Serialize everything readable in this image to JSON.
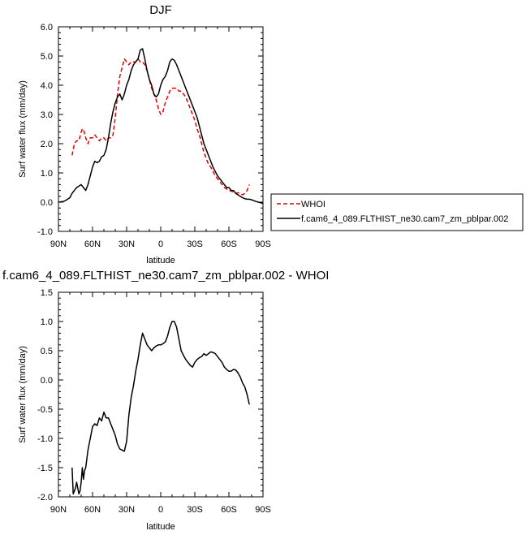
{
  "chart_data": [
    {
      "type": "line",
      "title": "DJF",
      "xlabel": "latitude",
      "ylabel": "Surf water flux (mm/day)",
      "xlim": [
        90,
        -90
      ],
      "ylim": [
        -1.0,
        6.0
      ],
      "x_ticks": [
        90,
        60,
        30,
        0,
        -30,
        -60,
        -90
      ],
      "x_tick_labels": [
        "90N",
        "60N",
        "30N",
        "0",
        "30S",
        "60S",
        "90S"
      ],
      "y_ticks": [
        -1,
        0,
        1,
        2,
        3,
        4,
        5,
        6
      ],
      "y_tick_labels": [
        "-1.0",
        "0.0",
        "1.0",
        "2.0",
        "3.0",
        "4.0",
        "5.0",
        "6.0"
      ],
      "grid": false,
      "legend": {
        "placement": "right",
        "entries": [
          "WHOI",
          "f.cam6_4_089.FLTHIST_ne30.cam7_zm_pblpar.002"
        ]
      },
      "series": [
        {
          "name": "WHOI",
          "color": "#e00000",
          "dash": true,
          "x": [
            78,
            76,
            74,
            72,
            70,
            69,
            68,
            66,
            64,
            62,
            60,
            58,
            56,
            54,
            52,
            50,
            48,
            46,
            44,
            42,
            40,
            38,
            36,
            34,
            32,
            30,
            28,
            26,
            24,
            22,
            20,
            18,
            16,
            14,
            12,
            10,
            8,
            6,
            4,
            2,
            0,
            -2,
            -4,
            -6,
            -8,
            -10,
            -12,
            -14,
            -16,
            -18,
            -20,
            -22,
            -24,
            -26,
            -28,
            -30,
            -32,
            -34,
            -36,
            -38,
            -40,
            -42,
            -44,
            -46,
            -48,
            -50,
            -52,
            -54,
            -56,
            -58,
            -60,
            -62,
            -64,
            -66,
            -68,
            -70,
            -72,
            -74,
            -76,
            -78
          ],
          "y": [
            1.6,
            2.0,
            2.1,
            2.1,
            2.4,
            2.5,
            2.5,
            2.2,
            2.0,
            2.2,
            2.2,
            2.3,
            2.2,
            2.1,
            2.2,
            2.2,
            2.1,
            2.2,
            2.2,
            2.3,
            2.9,
            3.7,
            4.3,
            4.6,
            4.9,
            4.8,
            4.7,
            4.8,
            4.8,
            4.8,
            4.9,
            4.8,
            4.8,
            4.7,
            4.5,
            4.2,
            3.9,
            3.7,
            3.5,
            3.2,
            3.0,
            3.1,
            3.4,
            3.6,
            3.8,
            3.9,
            3.9,
            3.9,
            3.8,
            3.8,
            3.7,
            3.6,
            3.4,
            3.2,
            3.0,
            2.8,
            2.5,
            2.3,
            2.0,
            1.7,
            1.5,
            1.3,
            1.2,
            1.05,
            0.9,
            0.8,
            0.7,
            0.6,
            0.5,
            0.45,
            0.4,
            0.38,
            0.35,
            0.3,
            0.32,
            0.3,
            0.25,
            0.3,
            0.4,
            0.6
          ]
        },
        {
          "name": "f.cam6_4_089.FLTHIST_ne30.cam7_zm_pblpar.002",
          "color": "#000000",
          "dash": false,
          "x": [
            90,
            86,
            84,
            82,
            80,
            78,
            76,
            74,
            72,
            70,
            68,
            66,
            64,
            62,
            60,
            58,
            56,
            54,
            52,
            50,
            48,
            46,
            44,
            42,
            40,
            38,
            36,
            34,
            32,
            30,
            28,
            26,
            24,
            22,
            20,
            18,
            16,
            14,
            12,
            10,
            8,
            6,
            4,
            2,
            0,
            -2,
            -4,
            -6,
            -8,
            -10,
            -12,
            -14,
            -16,
            -18,
            -20,
            -22,
            -24,
            -26,
            -28,
            -30,
            -32,
            -34,
            -36,
            -38,
            -40,
            -42,
            -44,
            -46,
            -48,
            -50,
            -52,
            -54,
            -56,
            -58,
            -60,
            -62,
            -64,
            -66,
            -68,
            -70,
            -72,
            -74,
            -76,
            -78,
            -80,
            -82,
            -84,
            -86,
            -88,
            -90
          ],
          "y": [
            0.0,
            0.02,
            0.05,
            0.1,
            0.15,
            0.3,
            0.4,
            0.5,
            0.55,
            0.6,
            0.5,
            0.4,
            0.6,
            0.9,
            1.2,
            1.4,
            1.35,
            1.4,
            1.55,
            1.6,
            1.8,
            2.2,
            2.7,
            3.1,
            3.4,
            3.6,
            3.7,
            3.5,
            3.7,
            4.0,
            4.2,
            4.5,
            4.7,
            4.8,
            4.9,
            5.2,
            5.25,
            4.9,
            4.5,
            4.2,
            4.0,
            3.7,
            3.6,
            3.7,
            4.0,
            4.2,
            4.3,
            4.5,
            4.8,
            4.9,
            4.85,
            4.7,
            4.5,
            4.3,
            4.1,
            3.9,
            3.7,
            3.5,
            3.3,
            3.1,
            2.9,
            2.6,
            2.3,
            2.0,
            1.8,
            1.6,
            1.4,
            1.2,
            1.05,
            0.9,
            0.8,
            0.7,
            0.6,
            0.5,
            0.5,
            0.4,
            0.4,
            0.3,
            0.25,
            0.2,
            0.15,
            0.12,
            0.1,
            0.1,
            0.08,
            0.05,
            0.02,
            0.0,
            -0.02,
            -0.05
          ]
        }
      ]
    },
    {
      "type": "line",
      "title": "f.cam6_4_089.FLTHIST_ne30.cam7_zm_pblpar.002 - WHOI",
      "xlabel": "latitude",
      "ylabel": "Surf water flux (mm/day)",
      "xlim": [
        90,
        -90
      ],
      "ylim": [
        -2.0,
        1.5
      ],
      "x_ticks": [
        90,
        60,
        30,
        0,
        -30,
        -60,
        -90
      ],
      "x_tick_labels": [
        "90N",
        "60N",
        "30N",
        "0",
        "30S",
        "60S",
        "90S"
      ],
      "y_ticks": [
        -2.0,
        -1.5,
        -1.0,
        -0.5,
        0.0,
        0.5,
        1.0,
        1.5
      ],
      "y_tick_labels": [
        "-2.0",
        "-1.5",
        "-1.0",
        "-0.5",
        "0.0",
        "0.5",
        "1.0",
        "1.5"
      ],
      "grid": false,
      "series": [
        {
          "color": "#000000",
          "dash": false,
          "x": [
            78,
            77,
            76,
            75,
            74,
            73,
            72,
            71,
            70,
            69,
            68,
            67,
            66,
            65,
            64,
            62,
            60,
            58,
            56,
            54,
            52,
            50,
            49,
            48,
            46,
            44,
            42,
            40,
            38,
            36,
            34,
            32,
            30,
            28,
            26,
            24,
            22,
            20,
            18,
            16,
            14,
            12,
            10,
            8,
            6,
            4,
            2,
            0,
            -2,
            -4,
            -6,
            -8,
            -10,
            -12,
            -14,
            -16,
            -18,
            -20,
            -22,
            -24,
            -26,
            -28,
            -30,
            -32,
            -34,
            -36,
            -38,
            -40,
            -42,
            -44,
            -46,
            -48,
            -50,
            -52,
            -54,
            -56,
            -58,
            -60,
            -62,
            -64,
            -66,
            -68,
            -70,
            -72,
            -74,
            -76,
            -78
          ],
          "y": [
            -1.5,
            -1.95,
            -1.9,
            -1.85,
            -1.75,
            -1.85,
            -1.95,
            -1.9,
            -1.75,
            -1.5,
            -1.7,
            -1.55,
            -1.5,
            -1.35,
            -1.2,
            -1.0,
            -0.8,
            -0.75,
            -0.78,
            -0.65,
            -0.7,
            -0.55,
            -0.6,
            -0.65,
            -0.65,
            -0.75,
            -0.85,
            -0.95,
            -1.1,
            -1.18,
            -1.2,
            -1.22,
            -1.05,
            -0.6,
            -0.3,
            -0.1,
            0.15,
            0.35,
            0.6,
            0.8,
            0.7,
            0.6,
            0.55,
            0.5,
            0.55,
            0.58,
            0.6,
            0.6,
            0.62,
            0.65,
            0.75,
            0.9,
            1.0,
            1.0,
            0.9,
            0.7,
            0.5,
            0.42,
            0.35,
            0.3,
            0.25,
            0.22,
            0.3,
            0.35,
            0.38,
            0.4,
            0.45,
            0.42,
            0.45,
            0.48,
            0.47,
            0.45,
            0.4,
            0.35,
            0.3,
            0.22,
            0.18,
            0.15,
            0.15,
            0.18,
            0.17,
            0.12,
            0.05,
            -0.05,
            -0.12,
            -0.25,
            -0.42
          ]
        }
      ]
    }
  ]
}
